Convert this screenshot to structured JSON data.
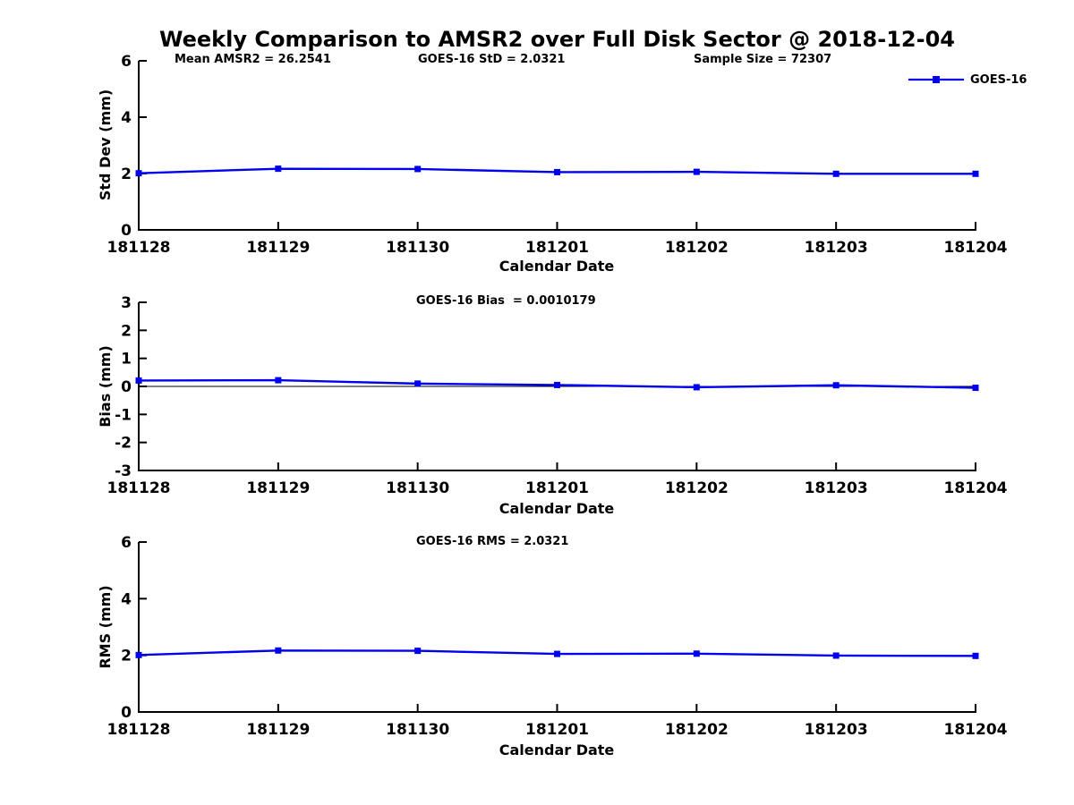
{
  "title": "Weekly Comparison to AMSR2 over Full Disk Sector @ 2018-12-04",
  "legend": {
    "label": "GOES-16"
  },
  "colors": {
    "series": "#0000EE",
    "axis": "#000000",
    "zero_line": "#000000",
    "background": "#FFFFFF"
  },
  "chart_data": [
    {
      "type": "line",
      "panel": "std-dev",
      "annotations": [
        "Mean AMSR2 = 26.2541",
        "GOES-16 StD = 2.0321",
        "Sample Size = 72307"
      ],
      "categories": [
        "181128",
        "181129",
        "181130",
        "181201",
        "181202",
        "181203",
        "181204"
      ],
      "series": [
        {
          "name": "GOES-16",
          "values": [
            2.01,
            2.17,
            2.16,
            2.05,
            2.06,
            1.99,
            1.99
          ]
        }
      ],
      "xlabel": "Calendar Date",
      "ylabel": "Std Dev (mm)",
      "ylim": [
        0,
        6
      ],
      "yticks": [
        0,
        2,
        4,
        6
      ],
      "zero_line": false,
      "grid": false,
      "legend_position": "top-right"
    },
    {
      "type": "line",
      "panel": "bias",
      "annotations": [
        "GOES-16 Bias  = 0.0010179"
      ],
      "categories": [
        "181128",
        "181129",
        "181130",
        "181201",
        "181202",
        "181203",
        "181204"
      ],
      "series": [
        {
          "name": "GOES-16",
          "values": [
            0.21,
            0.22,
            0.1,
            0.05,
            -0.03,
            0.04,
            -0.05
          ]
        }
      ],
      "xlabel": "Calendar Date",
      "ylabel": "Bias (mm)",
      "ylim": [
        -3,
        3
      ],
      "yticks": [
        -3,
        -2,
        -1,
        0,
        1,
        2,
        3
      ],
      "zero_line": true,
      "grid": false
    },
    {
      "type": "line",
      "panel": "rms",
      "annotations": [
        "GOES-16 RMS = 2.0321"
      ],
      "categories": [
        "181128",
        "181129",
        "181130",
        "181201",
        "181202",
        "181203",
        "181204"
      ],
      "series": [
        {
          "name": "GOES-16",
          "values": [
            2.01,
            2.17,
            2.16,
            2.05,
            2.06,
            1.99,
            1.98
          ]
        }
      ],
      "xlabel": "Calendar Date",
      "ylabel": "RMS (mm)",
      "ylim": [
        0,
        6
      ],
      "yticks": [
        0,
        2,
        4,
        6
      ],
      "zero_line": false,
      "grid": false
    }
  ]
}
